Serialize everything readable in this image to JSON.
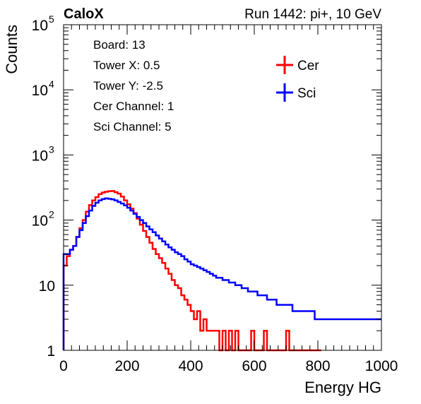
{
  "header": {
    "left_label": "CaloX",
    "right_label": "Run 1442: pi+, 10 GeV"
  },
  "info_box": {
    "lines": [
      "Board: 13",
      "Tower X: 0.5",
      "Tower Y: -2.5",
      "Cer Channel: 1",
      "Sci Channel: 5"
    ]
  },
  "colors": {
    "cer": "#ff0000",
    "sci": "#0000ff",
    "axis": "#000000",
    "background": "#ffffff"
  },
  "chart_data": {
    "type": "line",
    "title": "",
    "xlabel": "Energy HG",
    "ylabel": "Counts",
    "xlim": [
      0,
      1000
    ],
    "ylim": [
      1,
      100000
    ],
    "y_scale": "log",
    "grid": false,
    "legend_placement": "top-right",
    "x_ticks": [
      "0",
      "200",
      "400",
      "600",
      "800",
      "1000"
    ],
    "y_ticks": [
      {
        "value": 1,
        "label": "1"
      },
      {
        "value": 10,
        "label": "10"
      },
      {
        "value": 100,
        "label": "10^2"
      },
      {
        "value": 1000,
        "label": "10^3"
      },
      {
        "value": 10000,
        "label": "10^4"
      },
      {
        "value": 100000,
        "label": "10^5"
      }
    ],
    "series": [
      {
        "name": "Cer",
        "x": [
          0,
          10,
          20,
          30,
          40,
          50,
          60,
          70,
          80,
          90,
          100,
          110,
          120,
          130,
          140,
          150,
          160,
          170,
          180,
          190,
          200,
          210,
          220,
          230,
          240,
          250,
          260,
          270,
          280,
          290,
          300,
          310,
          320,
          330,
          340,
          350,
          360,
          370,
          380,
          390,
          400,
          410,
          420,
          430,
          440,
          450,
          460,
          470,
          480,
          490,
          500,
          510,
          520,
          530,
          540,
          550,
          560,
          570,
          580,
          590,
          600,
          610,
          620,
          630,
          640,
          650,
          660,
          670,
          680,
          690,
          700,
          710,
          720,
          730,
          740,
          750,
          760,
          770,
          780,
          790,
          800
        ],
        "values": [
          20,
          28,
          35,
          40,
          55,
          75,
          100,
          135,
          170,
          200,
          225,
          250,
          265,
          272,
          278,
          280,
          268,
          255,
          230,
          200,
          175,
          150,
          128,
          105,
          85,
          68,
          55,
          45,
          36,
          30,
          26,
          22,
          18,
          15,
          12,
          10,
          9,
          7,
          6,
          5,
          4,
          3,
          4,
          2,
          3,
          2,
          2,
          2,
          2,
          1,
          2,
          1,
          2,
          1,
          2,
          1,
          1,
          1,
          1,
          2,
          1,
          1,
          1,
          2,
          1,
          1,
          1,
          1,
          1,
          1,
          2,
          1,
          1,
          1,
          1,
          1,
          1,
          1,
          1,
          1,
          1
        ]
      },
      {
        "name": "Sci",
        "x": [
          0,
          10,
          20,
          30,
          40,
          50,
          60,
          70,
          80,
          90,
          100,
          110,
          120,
          130,
          140,
          150,
          160,
          170,
          180,
          190,
          200,
          210,
          220,
          230,
          240,
          250,
          260,
          270,
          280,
          290,
          300,
          310,
          320,
          330,
          340,
          350,
          360,
          370,
          380,
          390,
          400,
          410,
          420,
          430,
          440,
          450,
          460,
          470,
          480,
          490,
          500,
          510,
          520,
          530,
          540,
          550,
          560,
          570,
          580,
          590,
          600,
          610,
          620,
          630,
          640,
          650,
          660,
          670,
          680,
          690,
          700,
          710,
          720,
          730,
          740,
          750,
          760,
          770,
          780,
          790,
          800,
          810,
          820,
          830,
          840,
          850,
          860,
          870,
          880,
          890,
          900,
          910,
          920,
          930,
          940,
          950,
          960,
          970,
          980,
          990,
          1000
        ],
        "values": [
          30,
          30,
          35,
          40,
          55,
          70,
          90,
          115,
          140,
          165,
          185,
          200,
          210,
          215,
          212,
          208,
          200,
          190,
          180,
          168,
          155,
          140,
          125,
          112,
          100,
          90,
          80,
          72,
          65,
          58,
          52,
          47,
          42,
          38,
          35,
          32,
          30,
          28,
          25,
          23,
          21,
          20,
          19,
          18,
          17,
          16,
          15,
          14,
          13,
          13,
          12,
          12,
          11,
          11,
          10,
          10,
          9,
          9,
          8,
          8,
          8,
          7,
          7,
          7,
          6,
          6,
          6,
          5,
          5,
          5,
          5,
          5,
          4,
          4,
          4,
          4,
          4,
          4,
          4,
          3,
          3,
          3,
          3,
          3,
          3,
          3,
          3,
          3,
          3,
          3,
          3,
          3,
          3,
          3,
          3,
          3,
          3,
          3,
          3,
          3,
          3
        ]
      }
    ]
  }
}
